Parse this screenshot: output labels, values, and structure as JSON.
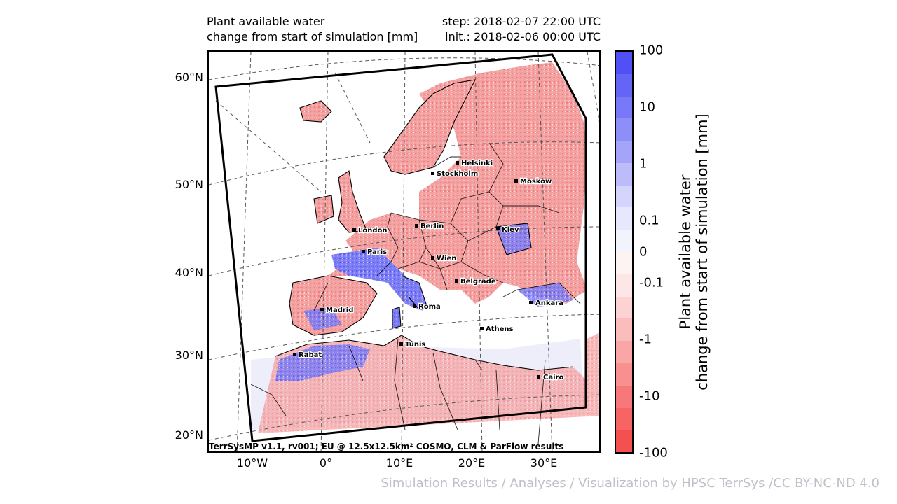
{
  "title": {
    "left_line1": "Plant available water",
    "left_line2": "change from start of simulation [mm]",
    "right_line1": "step: 2018-02-07 22:00 UTC",
    "right_line2": "init.: 2018-02-06 00:00 UTC"
  },
  "axes": {
    "lat_labels": [
      "60°N",
      "50°N",
      "40°N",
      "30°N",
      "20°N"
    ],
    "lon_labels": [
      "10°W",
      "0°",
      "10°E",
      "20°E",
      "30°E"
    ]
  },
  "cities": [
    {
      "name": "Helsinki"
    },
    {
      "name": "Stockholm"
    },
    {
      "name": "Moskow"
    },
    {
      "name": "London"
    },
    {
      "name": "Berlin"
    },
    {
      "name": "Kiev"
    },
    {
      "name": "Paris"
    },
    {
      "name": "Wien"
    },
    {
      "name": "Belgrade"
    },
    {
      "name": "Madrid"
    },
    {
      "name": "Roma"
    },
    {
      "name": "Ankara"
    },
    {
      "name": "Athens"
    },
    {
      "name": "Tunis"
    },
    {
      "name": "Rabat"
    },
    {
      "name": "Cairo"
    }
  ],
  "map_footer": "TerrSysMP v1.1, rv001; EU @ 12.5x12.5km² COSMO, CLM & ParFlow results",
  "colorbar": {
    "label_line1": "Plant available water",
    "label_line2": "change from start of simulation [mm]",
    "ticks": [
      "100",
      "10",
      "1",
      "0.1",
      "0",
      "-0.1",
      "-1",
      "-10",
      "-100"
    ],
    "colors": [
      "#5050f5",
      "#6464f7",
      "#7878f8",
      "#8e8ef9",
      "#a4a4fa",
      "#bcbcfb",
      "#d4d4fc",
      "#e8e8fd",
      "#f3f3fe",
      "#fdf3f3",
      "#fde6e6",
      "#fcd2d2",
      "#fbbcbc",
      "#faa6a6",
      "#f89090",
      "#f77878",
      "#f66464",
      "#f55050"
    ],
    "positive_color": "#6b6bf5",
    "negative_color": "#f07a7a"
  },
  "attribution": "Simulation Results / Analyses / Visualization by HPSC TerrSys /CC BY-NC-ND 4.0"
}
